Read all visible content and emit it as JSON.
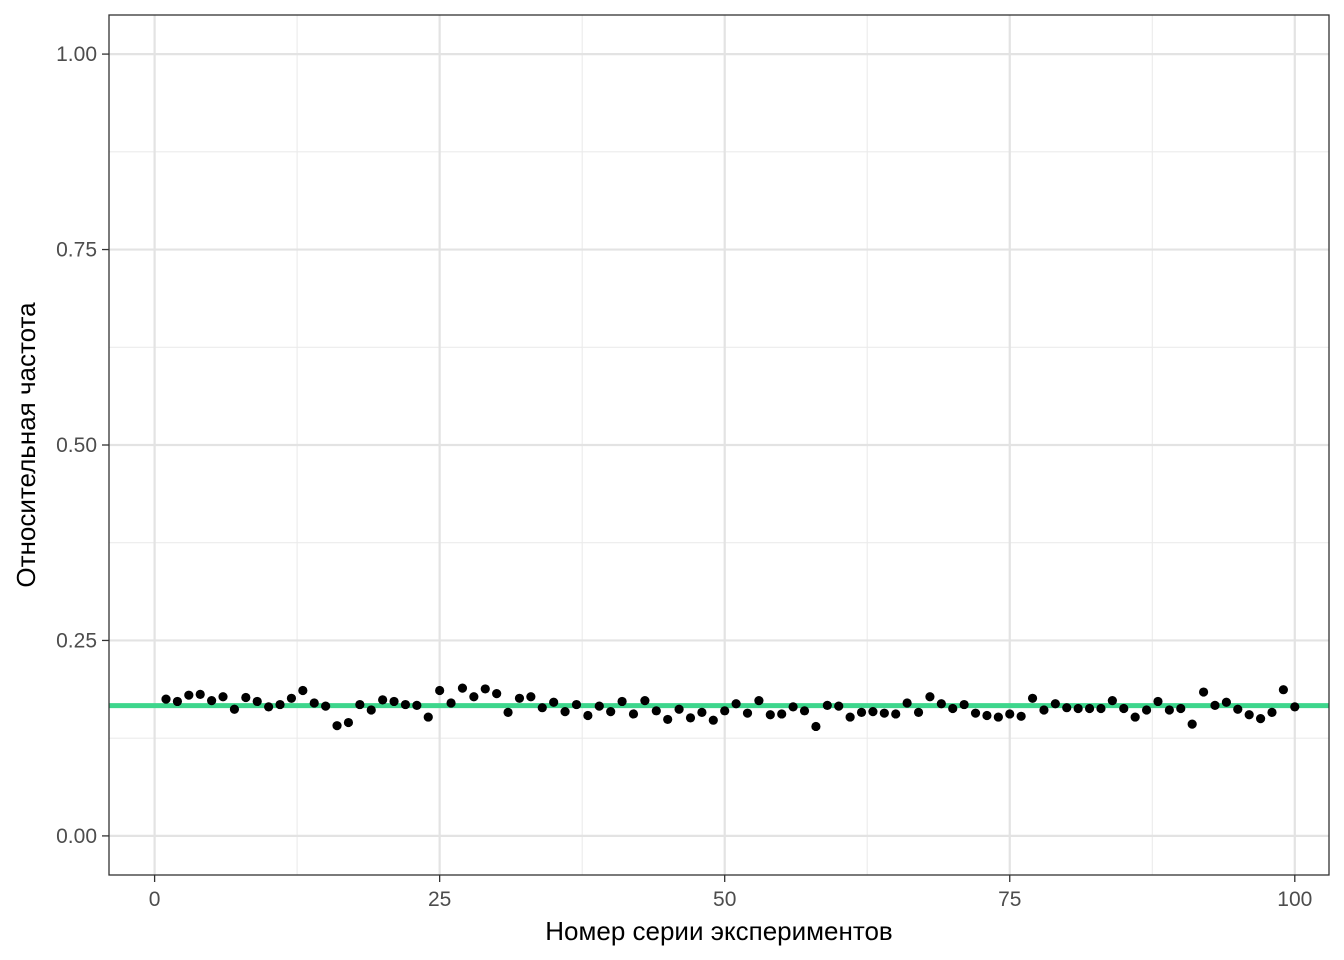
{
  "chart_data": {
    "type": "scatter",
    "xlabel": "Номер серии экспериментов",
    "ylabel": "Относительная частота",
    "xlim": [
      -4,
      103
    ],
    "ylim": [
      -0.05,
      1.05
    ],
    "x_ticks": [
      0,
      25,
      50,
      75,
      100
    ],
    "x_tick_labels": [
      "0",
      "25",
      "50",
      "75",
      "100"
    ],
    "y_ticks": [
      0,
      0.25,
      0.5,
      0.75,
      1.0
    ],
    "y_tick_labels": [
      "0.00",
      "0.25",
      "0.50",
      "0.75",
      "1.00"
    ],
    "grid": true,
    "legend": "none",
    "reference_line": {
      "y": 0.1667,
      "color": "#3dd68c"
    },
    "point_color": "#000000",
    "series": [
      {
        "x": [
          1,
          2,
          3,
          4,
          5,
          6,
          7,
          8,
          9,
          10,
          11,
          12,
          13,
          14,
          15,
          16,
          17,
          18,
          19,
          20,
          21,
          22,
          23,
          24,
          25,
          26,
          27,
          28,
          29,
          30,
          31,
          32,
          33,
          34,
          35,
          36,
          37,
          38,
          39,
          40,
          41,
          42,
          43,
          44,
          45,
          46,
          47,
          48,
          49,
          50,
          51,
          52,
          53,
          54,
          55,
          56,
          57,
          58,
          59,
          60,
          61,
          62,
          63,
          64,
          65,
          66,
          67,
          68,
          69,
          70,
          71,
          72,
          73,
          74,
          75,
          76,
          77,
          78,
          79,
          80,
          81,
          82,
          83,
          84,
          85,
          86,
          87,
          88,
          89,
          90,
          91,
          92,
          93,
          94,
          95,
          96,
          97,
          98,
          99,
          100
        ],
        "y": [
          0.175,
          0.172,
          0.18,
          0.181,
          0.173,
          0.178,
          0.162,
          0.177,
          0.172,
          0.165,
          0.168,
          0.176,
          0.186,
          0.17,
          0.166,
          0.141,
          0.145,
          0.168,
          0.161,
          0.174,
          0.172,
          0.168,
          0.167,
          0.152,
          0.186,
          0.17,
          0.189,
          0.178,
          0.188,
          0.182,
          0.158,
          0.176,
          0.178,
          0.164,
          0.171,
          0.159,
          0.168,
          0.154,
          0.166,
          0.159,
          0.172,
          0.156,
          0.173,
          0.16,
          0.149,
          0.162,
          0.151,
          0.158,
          0.148,
          0.16,
          0.169,
          0.157,
          0.173,
          0.155,
          0.156,
          0.165,
          0.16,
          0.14,
          0.167,
          0.166,
          0.152,
          0.158,
          0.159,
          0.157,
          0.156,
          0.17,
          0.158,
          0.178,
          0.169,
          0.163,
          0.168,
          0.157,
          0.154,
          0.152,
          0.156,
          0.153,
          0.176,
          0.161,
          0.169,
          0.164,
          0.163,
          0.163,
          0.163,
          0.173,
          0.163,
          0.152,
          0.161,
          0.172,
          0.161,
          0.163,
          0.143,
          0.184,
          0.167,
          0.171,
          0.162,
          0.155,
          0.15,
          0.158,
          0.187,
          0.165
        ]
      }
    ]
  }
}
